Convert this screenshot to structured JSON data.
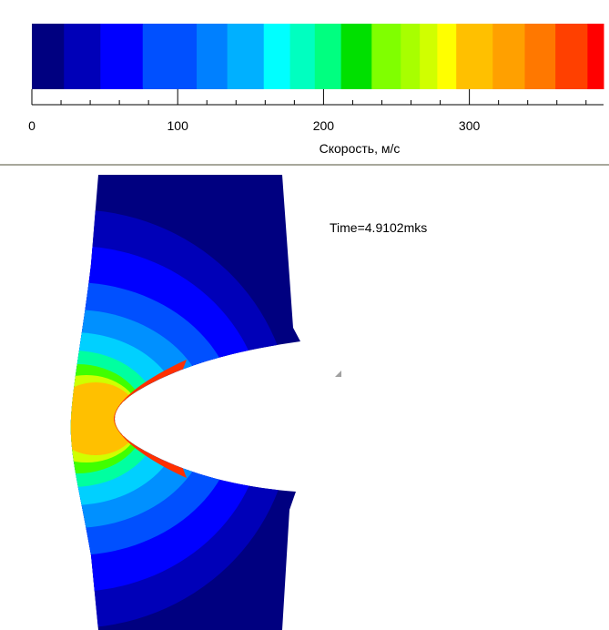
{
  "colorbar": {
    "label": "Скорость, м/с",
    "range": [
      0,
      392
    ],
    "ticks": [
      0,
      100,
      200,
      300
    ],
    "minor_ticks": [
      20,
      40,
      60,
      80,
      120,
      140,
      160,
      180,
      220,
      240,
      260,
      280,
      320,
      340,
      360,
      380
    ],
    "boundaries": [
      0,
      22,
      47,
      76,
      113,
      134,
      159,
      177,
      194,
      212,
      233,
      253,
      266,
      278,
      291,
      316,
      338,
      359,
      381,
      392
    ],
    "colors": [
      "#000080",
      "#0000b8",
      "#0000ff",
      "#0050ff",
      "#0080ff",
      "#00b0ff",
      "#00ffff",
      "#00ffc0",
      "#00ff80",
      "#00e000",
      "#80ff00",
      "#a8ff00",
      "#d0ff00",
      "#ffff00",
      "#ffc000",
      "#ffa000",
      "#ff7800",
      "#ff4000",
      "#ff0000"
    ]
  },
  "annotation": "Time=4.9102mks"
}
